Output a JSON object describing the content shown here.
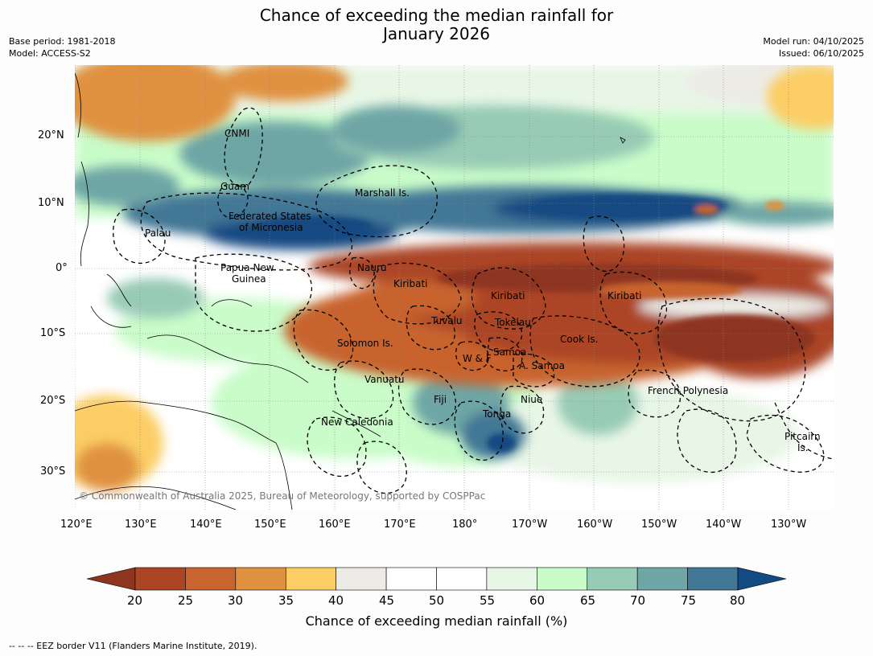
{
  "title": {
    "line1": "Chance of exceeding the median rainfall for",
    "line2": "January 2026"
  },
  "meta": {
    "base_period": "Base period: 1981-2018",
    "model": "Model: ACCESS-S2",
    "model_run": "Model run: 04/10/2025",
    "issued": "Issued: 06/10/2025"
  },
  "axes": {
    "lat_ticks": [
      "20°N",
      "10°N",
      "0°",
      "10°S",
      "20°S",
      "30°S"
    ],
    "lon_ticks": [
      "120°E",
      "130°E",
      "140°E",
      "150°E",
      "160°E",
      "170°E",
      "180°",
      "170°W",
      "160°W",
      "150°W",
      "140°W",
      "130°W"
    ]
  },
  "regions": {
    "cnmi": "CNMI",
    "guam": "Guam",
    "marshall": "Marshall Is.",
    "fsm_1": "Federated States",
    "fsm_2": "of Micronesia",
    "palau": "Palau",
    "png_1": "Papua New",
    "png_2": "Guinea",
    "nauru": "Nauru",
    "kiribati_w": "Kiribati",
    "kiribati_c": "Kiribati",
    "kiribati_e": "Kiribati",
    "tuvalu": "Tuvalu",
    "tokelau": "Tokelau",
    "cook": "Cook Is.",
    "solomon": "Solomon Is.",
    "samoa": "Samoa",
    "wf": "W & F",
    "asamoa": "A. Samoa",
    "vanuatu": "Vanuatu",
    "fiji": "Fiji",
    "niue": "Niue",
    "tonga": "Tonga",
    "frpoly": "French Polynesia",
    "newcal": "New Caledonia",
    "pitcairn_1": "Pitcairn",
    "pitcairn_2": "Is."
  },
  "copyright": "© Commonwealth of Australia 2025, Bureau of Meteorology, supported by COSPPac",
  "colorbar": {
    "ticks": [
      "20",
      "25",
      "30",
      "35",
      "40",
      "45",
      "50",
      "55",
      "60",
      "65",
      "70",
      "75",
      "80"
    ],
    "colors": [
      "#ab4526",
      "#c8642f",
      "#e0913f",
      "#fccd65",
      "#ecebe6",
      "#ffffff",
      "#ffffff",
      "#e8f6e6",
      "#c9fcc9",
      "#98cbb5",
      "#6ea6a6",
      "#437796"
    ],
    "low_color": "#8e3520",
    "high_color": "#124a82",
    "label": "Chance of exceeding median rainfall (%)"
  },
  "footer": "--  --  -- EEZ border V11 (Flanders Marine Institute, 2019)."
}
